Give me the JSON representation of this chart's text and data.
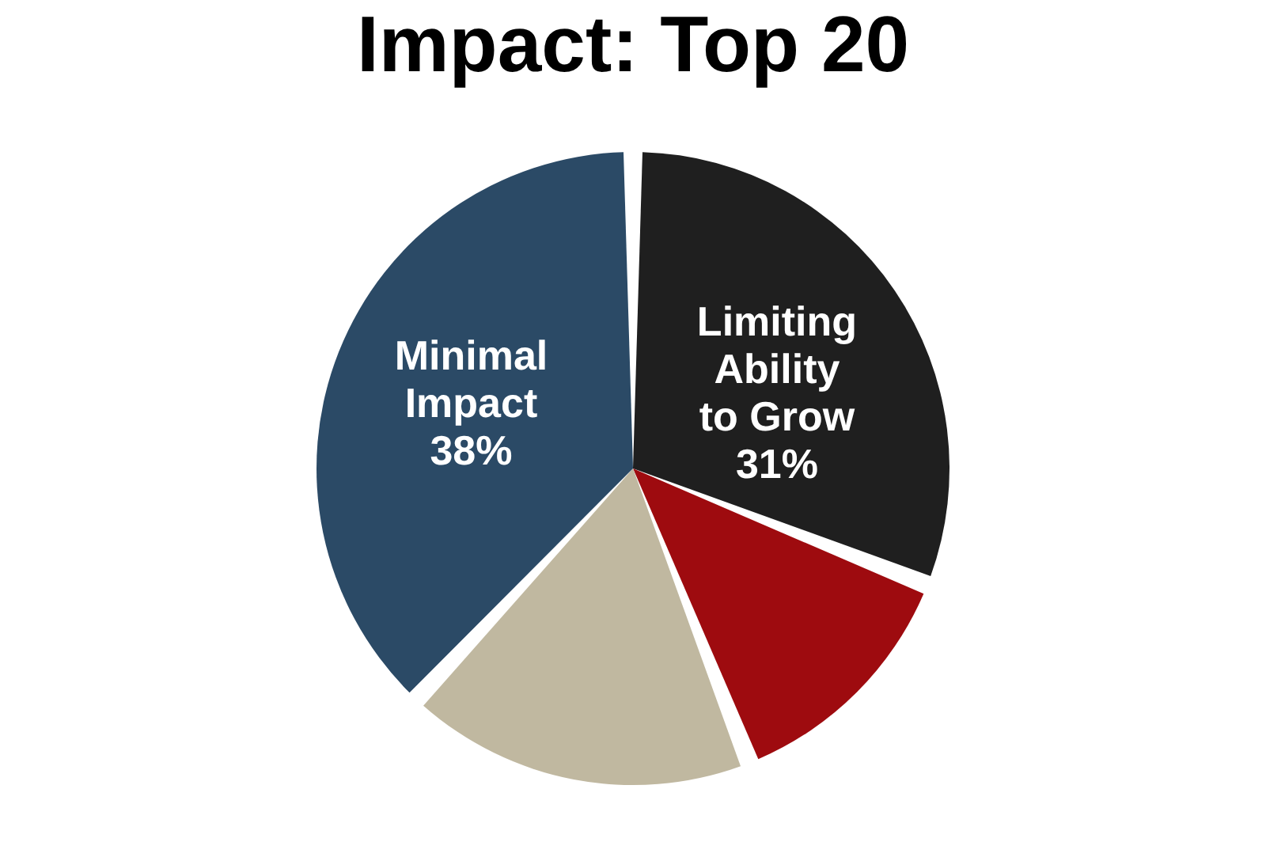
{
  "chart_data": {
    "type": "pie",
    "title": "Impact: Top 20",
    "categories": [
      "Limiting\nAbility\nto Grow",
      null,
      null,
      "Minimal\nImpact"
    ],
    "values": [
      31,
      13,
      18,
      38
    ],
    "colors": [
      "#1f1f1f",
      "#9e0b0f",
      "#c0b8a0",
      "#2b4a66"
    ],
    "value_labels": [
      "31%",
      null,
      null,
      "38%"
    ],
    "legend": false
  }
}
